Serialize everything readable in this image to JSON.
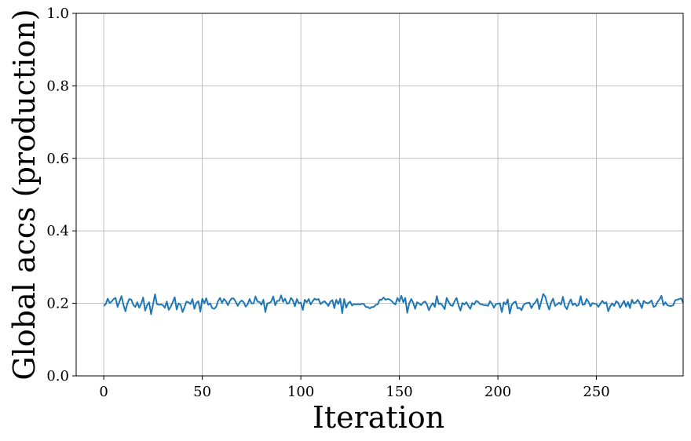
{
  "chart_data": {
    "type": "line",
    "xlabel": "Iteration",
    "ylabel": "Global accs (production)",
    "xlim": [
      -14,
      294
    ],
    "ylim": [
      0.0,
      1.0
    ],
    "xticks": [
      0,
      50,
      100,
      150,
      200,
      250
    ],
    "yticks": [
      0.0,
      0.2,
      0.4,
      0.6,
      0.8,
      1.0
    ],
    "xtick_labels": [
      "0",
      "50",
      "100",
      "150",
      "200",
      "250"
    ],
    "ytick_labels": [
      "0.0",
      "0.2",
      "0.4",
      "0.6",
      "0.8",
      "1.0"
    ],
    "grid": true,
    "line_color": "#1f77b4",
    "series": [
      {
        "x_start": 0,
        "x_step": 1,
        "values": [
          0.193,
          0.198,
          0.213,
          0.201,
          0.205,
          0.212,
          0.215,
          0.19,
          0.205,
          0.22,
          0.196,
          0.178,
          0.2,
          0.212,
          0.21,
          0.196,
          0.19,
          0.203,
          0.188,
          0.199,
          0.216,
          0.18,
          0.195,
          0.203,
          0.17,
          0.197,
          0.225,
          0.198,
          0.196,
          0.197,
          0.195,
          0.188,
          0.205,
          0.182,
          0.191,
          0.203,
          0.217,
          0.183,
          0.2,
          0.196,
          0.176,
          0.19,
          0.205,
          0.203,
          0.198,
          0.212,
          0.185,
          0.201,
          0.206,
          0.177,
          0.213,
          0.2,
          0.214,
          0.196,
          0.2,
          0.187,
          0.185,
          0.19,
          0.206,
          0.215,
          0.201,
          0.212,
          0.206,
          0.195,
          0.207,
          0.214,
          0.213,
          0.204,
          0.193,
          0.203,
          0.208,
          0.203,
          0.191,
          0.197,
          0.212,
          0.2,
          0.2,
          0.219,
          0.205,
          0.204,
          0.196,
          0.21,
          0.176,
          0.2,
          0.201,
          0.205,
          0.219,
          0.195,
          0.207,
          0.207,
          0.222,
          0.204,
          0.213,
          0.199,
          0.201,
          0.215,
          0.208,
          0.192,
          0.212,
          0.2,
          0.202,
          0.182,
          0.21,
          0.203,
          0.212,
          0.197,
          0.206,
          0.213,
          0.21,
          0.212,
          0.198,
          0.203,
          0.206,
          0.2,
          0.193,
          0.205,
          0.209,
          0.187,
          0.21,
          0.198,
          0.213,
          0.173,
          0.212,
          0.188,
          0.2,
          0.205,
          0.194,
          0.198,
          0.197,
          0.198,
          0.197,
          0.199,
          0.198,
          0.19,
          0.19,
          0.186,
          0.19,
          0.19,
          0.196,
          0.197,
          0.21,
          0.21,
          0.216,
          0.21,
          0.212,
          0.211,
          0.207,
          0.201,
          0.197,
          0.215,
          0.205,
          0.221,
          0.203,
          0.215,
          0.174,
          0.2,
          0.212,
          0.202,
          0.185,
          0.203,
          0.2,
          0.195,
          0.202,
          0.205,
          0.197,
          0.181,
          0.193,
          0.201,
          0.19,
          0.22,
          0.198,
          0.2,
          0.193,
          0.184,
          0.215,
          0.204,
          0.195,
          0.193,
          0.206,
          0.215,
          0.195,
          0.18,
          0.201,
          0.197,
          0.203,
          0.193,
          0.185,
          0.201,
          0.197,
          0.207,
          0.204,
          0.198,
          0.197,
          0.195,
          0.195,
          0.193,
          0.206,
          0.199,
          0.188,
          0.198,
          0.199,
          0.2,
          0.176,
          0.203,
          0.197,
          0.211,
          0.172,
          0.195,
          0.202,
          0.205,
          0.186,
          0.188,
          0.181,
          0.195,
          0.2,
          0.201,
          0.202,
          0.187,
          0.197,
          0.203,
          0.212,
          0.184,
          0.205,
          0.226,
          0.219,
          0.199,
          0.183,
          0.202,
          0.213,
          0.193,
          0.197,
          0.202,
          0.197,
          0.218,
          0.192,
          0.184,
          0.2,
          0.211,
          0.195,
          0.2,
          0.193,
          0.196,
          0.22,
          0.196,
          0.197,
          0.212,
          0.204,
          0.192,
          0.201,
          0.199,
          0.198,
          0.19,
          0.199,
          0.207,
          0.2,
          0.203,
          0.178,
          0.192,
          0.2,
          0.193,
          0.206,
          0.202,
          0.188,
          0.197,
          0.207,
          0.191,
          0.204,
          0.187,
          0.21,
          0.2,
          0.203,
          0.21,
          0.2,
          0.187,
          0.207,
          0.202,
          0.2,
          0.203,
          0.208,
          0.19,
          0.193,
          0.204,
          0.211,
          0.221,
          0.195,
          0.203,
          0.195,
          0.193,
          0.193,
          0.195,
          0.209,
          0.21,
          0.212,
          0.214,
          0.202
        ]
      }
    ]
  }
}
